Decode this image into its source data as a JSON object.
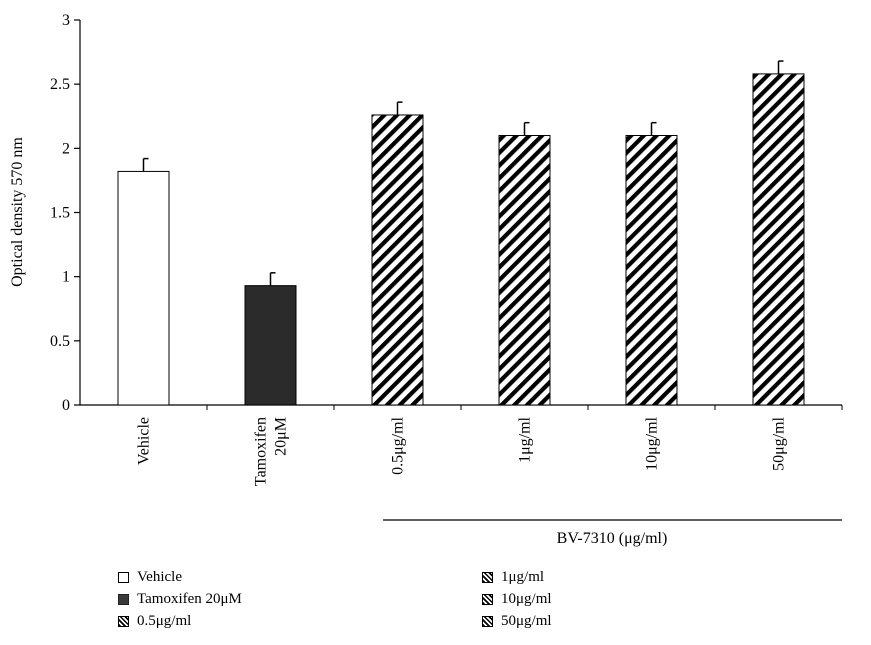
{
  "chart_data": {
    "type": "bar",
    "ylabel": "Optical density 570 nm",
    "ylim": [
      0,
      3
    ],
    "yticks": [
      "0",
      "0.5",
      "1",
      "1.5",
      "2",
      "2.5",
      "3"
    ],
    "categories": [
      "Vehicle",
      "Tamoxifen 20μM",
      "0.5μg/ml",
      "1μg/ml",
      "10μg/ml",
      "50μg/ml"
    ],
    "tick_labels": [
      [
        "Vehicle"
      ],
      [
        "Tamoxifen",
        "20μM"
      ],
      [
        "0.5μg/ml"
      ],
      [
        "1μg/ml"
      ],
      [
        "10μg/ml"
      ],
      [
        "50μg/ml"
      ]
    ],
    "values": [
      1.82,
      0.93,
      2.26,
      2.1,
      2.1,
      2.58
    ],
    "errors": [
      0.1,
      0.1,
      0.1,
      0.1,
      0.1,
      0.1
    ],
    "fills": [
      "white",
      "black",
      "hatch",
      "hatch",
      "hatch",
      "hatch"
    ],
    "group_label": "BV-7310 (μg/ml)",
    "grid": false,
    "legend_position": "bottom",
    "legend": [
      {
        "label": "Vehicle",
        "fill": "white"
      },
      {
        "label": "Tamoxifen 20μM",
        "fill": "black"
      },
      {
        "label": "0.5μg/ml",
        "fill": "hatch"
      },
      {
        "label": "1μg/ml",
        "fill": "hatch"
      },
      {
        "label": "10μg/ml",
        "fill": "hatch"
      },
      {
        "label": "50μg/ml",
        "fill": "hatch"
      }
    ]
  }
}
